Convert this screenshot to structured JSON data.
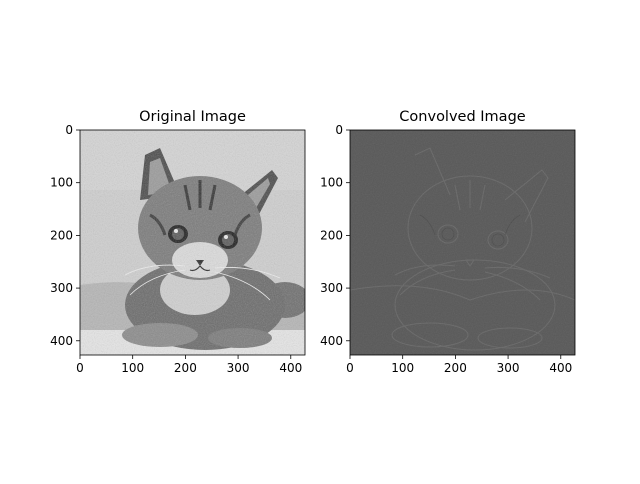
{
  "panels": [
    {
      "title": "Original Image",
      "image_description": "grayscale tabby kitten",
      "tone": "original",
      "x_ticks": [
        "0",
        "100",
        "200",
        "300",
        "400"
      ],
      "y_ticks": [
        "0",
        "100",
        "200",
        "300",
        "400"
      ]
    },
    {
      "title": "Convolved Image",
      "image_description": "edge-filtered kitten on flat gray",
      "tone": "edges",
      "x_ticks": [
        "0",
        "100",
        "200",
        "300",
        "400"
      ],
      "y_ticks": [
        "0",
        "100",
        "200",
        "300",
        "400"
      ]
    }
  ],
  "colors": {
    "axis": "#000000",
    "original_bg": "#c9c9c9",
    "convolved_bg": "#565656"
  }
}
